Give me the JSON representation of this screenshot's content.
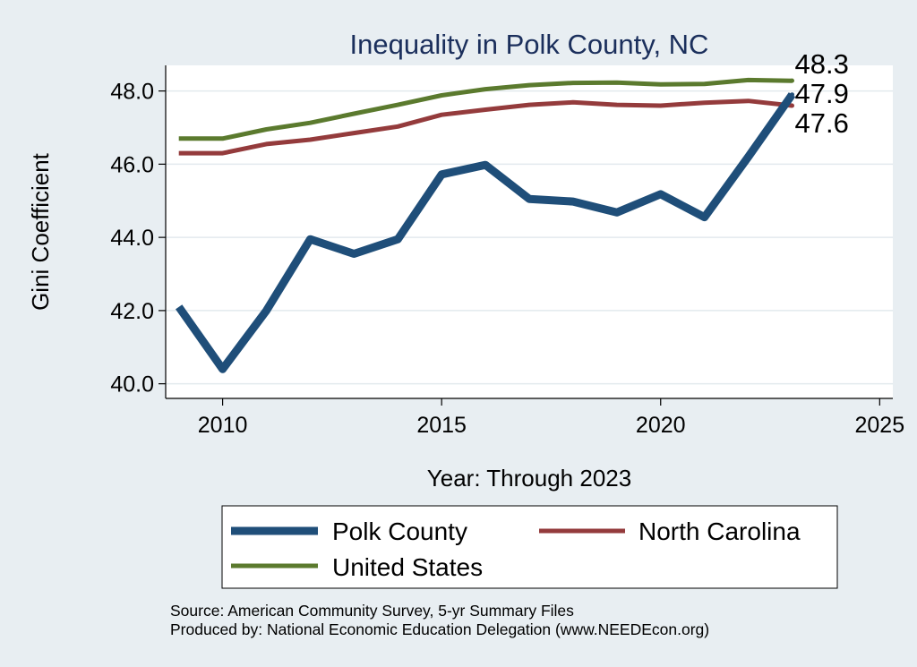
{
  "chart_data": {
    "type": "line",
    "title": "Inequality in Polk County, NC",
    "xlabel": "Year: Through 2023",
    "ylabel": "Gini Coefficient",
    "xlim": [
      2008.7,
      2025.3
    ],
    "ylim": [
      39.6,
      48.7
    ],
    "xticks": [
      2010,
      2015,
      2020,
      2025
    ],
    "yticks": [
      40,
      42,
      44,
      46,
      48
    ],
    "ytick_labels": [
      "40.0",
      "42.0",
      "44.0",
      "46.0",
      "48.0"
    ],
    "grid": true,
    "series": [
      {
        "name": "Polk County",
        "color": "#1f4e79",
        "x": [
          2009,
          2010,
          2011,
          2012,
          2013,
          2014,
          2015,
          2016,
          2017,
          2018,
          2019,
          2020,
          2021,
          2022,
          2023
        ],
        "values": [
          42.1,
          40.4,
          42.0,
          43.95,
          43.55,
          43.95,
          45.72,
          45.98,
          45.05,
          44.98,
          44.68,
          45.18,
          44.55,
          46.2,
          47.9
        ],
        "end_label": "47.9"
      },
      {
        "name": "North Carolina",
        "color": "#943b3c",
        "x": [
          2009,
          2010,
          2011,
          2012,
          2013,
          2014,
          2015,
          2016,
          2017,
          2018,
          2019,
          2020,
          2021,
          2022,
          2023
        ],
        "values": [
          46.3,
          46.3,
          46.55,
          46.67,
          46.85,
          47.03,
          47.35,
          47.49,
          47.62,
          47.69,
          47.62,
          47.6,
          47.68,
          47.73,
          47.6
        ],
        "end_label": "47.6"
      },
      {
        "name": "United States",
        "color": "#5b7a2e",
        "x": [
          2009,
          2010,
          2011,
          2012,
          2013,
          2014,
          2015,
          2016,
          2017,
          2018,
          2019,
          2020,
          2021,
          2022,
          2023
        ],
        "values": [
          46.7,
          46.7,
          46.95,
          47.13,
          47.38,
          47.62,
          47.88,
          48.05,
          48.16,
          48.22,
          48.23,
          48.18,
          48.19,
          48.3,
          48.28
        ],
        "end_label": "48.3"
      }
    ],
    "legend": {
      "placement": "bottom",
      "entries": [
        "Polk County",
        "North Carolina",
        "United States"
      ]
    },
    "notes": [
      "Source: American Community Survey, 5-yr Summary Files",
      "Produced by: National Economic Education Delegation (www.NEEDEcon.org)"
    ]
  },
  "colors": {
    "background": "#e8eef2",
    "plot_area": "#ffffff",
    "grid": "#e3eaee",
    "title": "#1b2f5c",
    "text": "#000000"
  }
}
